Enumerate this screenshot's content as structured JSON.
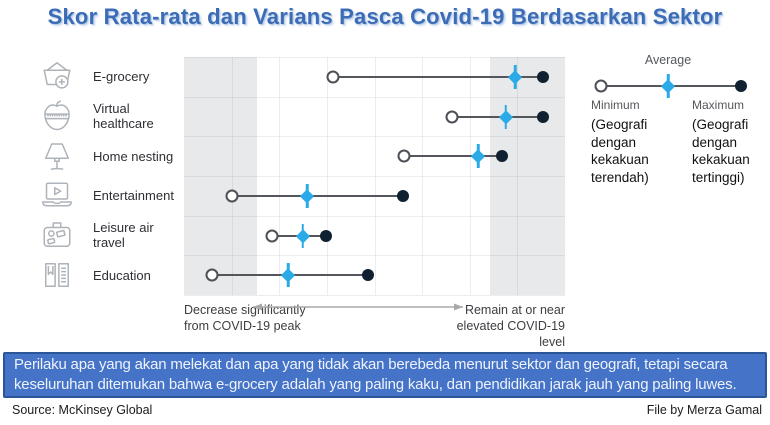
{
  "title": "Skor Rata-rata dan Varians Pasca Covid-19 Berdasarkan Sektor",
  "colors": {
    "title_blue": "#3b6cb5",
    "average_cyan": "#2aabe8",
    "maximum_dark": "#0f2130",
    "range_line": "#53575c",
    "band_gray": "#e8e9eb",
    "banner_bg": "#4573c7",
    "banner_border": "#2a5597"
  },
  "chart_data": {
    "type": "scatter",
    "subtype": "dumbbell-range",
    "title": "Skor Rata-rata dan Varians Pasca Covid-19 Berdasarkan Sektor",
    "note": "No numeric axis shown; positions are percent of axis from 'Decrease significantly from COVID-19 peak' (0) to 'Remain at or near elevated COVID-19 level' (100), estimated from pixels.",
    "x_axis": {
      "left_label": "Decrease significantly from COVID-19 peak",
      "right_label": "Remain at or near elevated COVID-19 level",
      "range_pct": [
        0,
        100
      ]
    },
    "bands": {
      "left_pct": [
        0,
        19.2
      ],
      "right_pct": [
        80.3,
        100
      ]
    },
    "grid": {
      "vertical_cells": 8,
      "horizontal_rows": 6
    },
    "rows": [
      {
        "label": "E-grocery",
        "icon": "grocery-basket-icon",
        "min_pct": 39.1,
        "avg_pct": 86.9,
        "max_pct": 94.2
      },
      {
        "label": "Virtual healthcare",
        "icon": "apple-health-icon",
        "min_pct": 70.3,
        "avg_pct": 84.5,
        "max_pct": 94.2
      },
      {
        "label": "Home nesting",
        "icon": "lamp-icon",
        "min_pct": 57.7,
        "avg_pct": 77.2,
        "max_pct": 83.5
      },
      {
        "label": "Entertainment",
        "icon": "laptop-play-icon",
        "min_pct": 12.6,
        "avg_pct": 32.3,
        "max_pct": 57.5
      },
      {
        "label": "Leisure air travel",
        "icon": "suitcase-icon",
        "min_pct": 23.1,
        "avg_pct": 31.2,
        "max_pct": 37.3
      },
      {
        "label": "Education",
        "icon": "book-icon",
        "min_pct": 7.3,
        "avg_pct": 27.3,
        "max_pct": 48.3
      }
    ]
  },
  "legend": {
    "average_label": "Average",
    "minimum_label": "Minimum",
    "minimum_desc": "(Geografi dengan kekakuan terendah)",
    "maximum_label": "Maximum",
    "maximum_desc": "(Geografi dengan kekakuan tertinggi)"
  },
  "banner": {
    "text": "Perilaku apa yang akan melekat dan apa yang tidak akan berebeda menurut sektor dan geografi, tetapi secara keseluruhan ditemukan bahwa e-grocery adalah yang paling kaku, dan pendidikan jarak jauh yang paling luwes."
  },
  "footer": {
    "source": "Source: McKinsey Global",
    "credit": "File by Merza Gamal"
  }
}
